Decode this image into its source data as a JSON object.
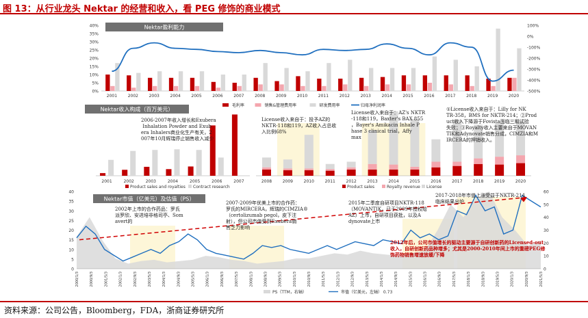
{
  "figure_title": "图 13：从行业龙头 Nektar 的经营和收入，看 PEG 修饰的商业模式",
  "source_note": "资料来源：公司公告，Bloomberg，FDA，浙商证券研究所",
  "colors": {
    "dark_red": "#c00000",
    "pink": "#f4a6ae",
    "light_gray": "#d9d9d9",
    "blue": "#1f6fbf",
    "annotation_red": "#c00000"
  },
  "chart_data": [
    {
      "type": "bar",
      "title": "Nektar盈利能力",
      "categories": [
        "2001",
        "2002",
        "2003",
        "2004",
        "2005",
        "2006",
        "2007",
        "2008",
        "2009",
        "2010",
        "2011",
        "2012",
        "2013",
        "2014",
        "2015",
        "2016",
        "2017",
        "2018",
        "2019",
        "2020"
      ],
      "y_left_ticks": [
        "0%",
        "5%",
        "10%",
        "15%",
        "20%",
        "25%",
        "30%",
        "35%",
        "40%"
      ],
      "y_right_ticks": [
        "100%",
        "0%",
        "-100%",
        "-200%",
        "-300%",
        "-400%",
        "-500%"
      ],
      "ylim_left": [
        0,
        40
      ],
      "ylim_right": [
        -500,
        100
      ],
      "series": [
        {
          "name": "毛利率",
          "kind": "bar",
          "axis": "left",
          "color": "#c00000",
          "values": [
            10,
            9.5,
            8,
            8,
            8,
            5.5,
            5,
            8,
            6,
            9,
            7.5,
            7.5,
            8,
            8.5,
            9.5,
            9.5,
            9.5,
            9.5,
            7.5,
            8
          ]
        },
        {
          "name": "销售&管理费用率",
          "kind": "bar",
          "axis": "left",
          "color": "#f4a6ae",
          "values": [
            3,
            2,
            3,
            3,
            3,
            2,
            3,
            4,
            4,
            3,
            3,
            4,
            3,
            4,
            4,
            5,
            4,
            3,
            3,
            8
          ]
        },
        {
          "name": "研发费用率",
          "kind": "bar",
          "axis": "left",
          "color": "#d9d9d9",
          "values": [
            17,
            11,
            12,
            12,
            12,
            10,
            10,
            17,
            14,
            12,
            17,
            19,
            14,
            14,
            14,
            21,
            19,
            15,
            38,
            26
          ]
        },
        {
          "name": "归母净利润率",
          "kind": "line",
          "axis": "right",
          "color": "#1f6fbf",
          "values": [
            -320,
            -110,
            -60,
            -110,
            -120,
            -140,
            -150,
            -130,
            -150,
            -170,
            -120,
            -130,
            -120,
            -70,
            -110,
            -170,
            -60,
            -100,
            -410,
            -310
          ]
        }
      ]
    },
    {
      "type": "bar",
      "title": "Nektar收入构成（百万美元）",
      "categories": [
        "2001",
        "2002",
        "2003",
        "2004",
        "2005",
        "2006",
        "2007"
      ],
      "series": [
        {
          "name": "Product sales and royalties",
          "color": "#c00000",
          "values": [
            8,
            18,
            27,
            20,
            28,
            152,
            185
          ]
        },
        {
          "name": "Contract research",
          "color": "#d9d9d9",
          "values": [
            48,
            75,
            78,
            80,
            78,
            55,
            0
          ]
        }
      ],
      "ylim": [
        0,
        190
      ],
      "annotation": "2006-2007年收入增长和Exubera Inhalation Powder and Exubera Inhalers商业化生产有关，2007年10月辉瑞停止销售收入减少"
    },
    {
      "type": "bar",
      "categories": [
        "2008",
        "2009",
        "2010",
        "2011",
        "2012",
        "2013",
        "2014",
        "2015",
        "2016",
        "2017",
        "2018",
        "2019",
        "2020"
      ],
      "series": [
        {
          "name": "Product sales",
          "color": "#c00000",
          "values": [
            22,
            20,
            20,
            18,
            22,
            22,
            22,
            22,
            30,
            35,
            42,
            40,
            45
          ]
        },
        {
          "name": "Royalty revenue",
          "color": "#f4a6ae",
          "values": [
            8,
            6,
            6,
            6,
            8,
            20,
            18,
            10,
            20,
            15,
            20,
            28,
            28
          ]
        },
        {
          "name": "License",
          "color": "#d9d9d9",
          "values": [
            35,
            32,
            120,
            18,
            20,
            120,
            190,
            170,
            80,
            150,
            120,
            120,
            120
          ]
        }
      ],
      "ylim": [
        0,
        200
      ],
      "annotations": [
        "License收入来自于：投予AZ的NKTR-118和119，AZ收入占总收入比例68%",
        "License收入来自于：AZ's NKTR-118和119，Baxter's BAX 855，Bayer's Amikacin Inhale Phase 3 clinical trial，Affymax",
        "①License收入来自于：Lilly for NKTR-358，BMS for NKTR-214；②Product收入下降源于Fovista面临三期试验失败；③Royalty收入主要来自于MOVANTIK和Adynovate销售分成，CIMZIA和MIRCERA的押销收入。"
      ]
    },
    {
      "type": "line",
      "title": "Nektar市值（亿美元）及估值（PS）",
      "x_ticks": [
        "2000/1/3",
        "2000/9/3",
        "2001/5/3",
        "2002/1/3",
        "2002/9/3",
        "2003/5/3",
        "2004/1/3",
        "2004/9/3",
        "2005/5/3",
        "2006/1/3",
        "2006/9/3",
        "2007/5/3",
        "2008/1/3",
        "2008/9/3",
        "2009/5/3",
        "2010/1/3",
        "2010/9/3",
        "2011/5/3",
        "2012/1/3",
        "2012/9/3",
        "2013/5/3",
        "2014/1/3",
        "2014/9/3",
        "2015/5/3",
        "2016/1/3",
        "2016/9/3",
        "2017/5/3",
        "2018/1/3",
        "2018/9/3",
        "2019/5/3",
        "2020/1/3",
        "2020/9/3",
        "2021/5/3"
      ],
      "y_left_ticks": [
        "0",
        "5",
        "10",
        "15",
        "20",
        "25",
        "30",
        "35",
        "40"
      ],
      "y_right_ticks": [
        "0",
        "10",
        "20",
        "30",
        "40",
        "50",
        "60"
      ],
      "ylim_left": [
        0,
        40
      ],
      "ylim_right": [
        0,
        60
      ],
      "series": [
        {
          "name": "PS（TTM，右轴）",
          "kind": "area",
          "axis": "right",
          "color": "#d9d9d9",
          "values": [
            25,
            40,
            22,
            8,
            4,
            6,
            7,
            5,
            6,
            7,
            10,
            9,
            7,
            6,
            4,
            5,
            6,
            8,
            8,
            10,
            12,
            11,
            14,
            12,
            11,
            10,
            12,
            14,
            30,
            50,
            40,
            55,
            60,
            40,
            30,
            18,
            22
          ]
        },
        {
          "name": "市值（亿美元，左轴）",
          "kind": "line",
          "axis": "left",
          "color": "#1f6fbf",
          "values": [
            16,
            22,
            18,
            10,
            7,
            4,
            6,
            8,
            10,
            8,
            12,
            14,
            18,
            15,
            10,
            8,
            7,
            6,
            5,
            8,
            12,
            11,
            12,
            10,
            9,
            8,
            10,
            12,
            10,
            12,
            14,
            13,
            12,
            15,
            14,
            13,
            20,
            16,
            18,
            15,
            17,
            30,
            28,
            38,
            30,
            32,
            18,
            20,
            38,
            35,
            32
          ]
        }
      ],
      "trend_line": "red dashed rising from left to right",
      "legend_suffix": "0.73",
      "annotations": [
        "2002年上市的合作药品：罗氏派罗欣、安进培非格司亭、Somavert的",
        "2007-2009年优美上市的合作药：罗氏的MIRCERA，辉瑞的CIMZIA®（certolizumab pegol，皮下注射），但公司市值受到Exubera销售乏力影响",
        "2015年二季度自研项目NKTR-118（MOVANTIK，已于2009年授权给AZ）上市，自研项目获批，以及Adynovate上市",
        "2017-2018年市值上涨受益于NKTR-214临床结果出炉",
        "2012年后，公司市值增长的驱动主要源于自研创新药的Licensed-out收入，自研创新药品种增多；尤其是2000-2010年间上市的重磅PEG修饰药物销售增速放缓/下降"
      ]
    }
  ]
}
